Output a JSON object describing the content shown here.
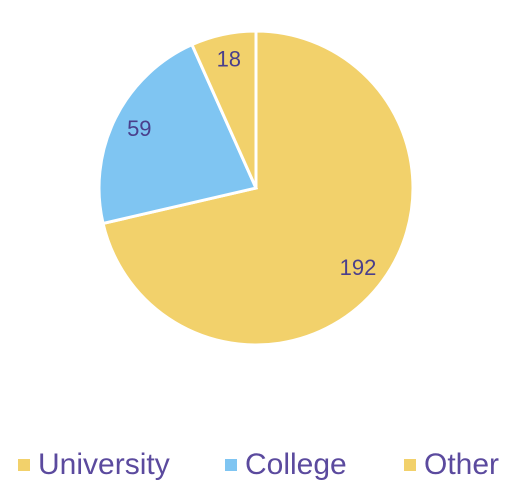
{
  "chart_data": {
    "type": "pie",
    "categories": [
      "University",
      "College",
      "Other"
    ],
    "values": [
      192,
      59,
      18
    ],
    "colors": [
      "#f2d16b",
      "#7fc5f2",
      "#f2d16b"
    ],
    "legend": "bottom"
  }
}
